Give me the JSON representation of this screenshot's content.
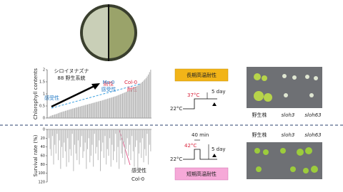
{
  "chart_data": [
    {
      "type": "bar",
      "y_label": "Chlorophyll contents",
      "color": "#a8a8a8",
      "ylim": [
        0,
        2
      ],
      "yticks": [
        0,
        0.5,
        1,
        1.5,
        2
      ],
      "inverted": false,
      "values": [
        0.05,
        0.08,
        0.1,
        0.12,
        0.13,
        0.15,
        0.16,
        0.18,
        0.2,
        0.22,
        0.24,
        0.25,
        0.27,
        0.28,
        0.3,
        0.31,
        0.33,
        0.34,
        0.36,
        0.37,
        0.39,
        0.4,
        0.41,
        0.43,
        0.44,
        0.46,
        0.47,
        0.48,
        0.5,
        0.51,
        0.52,
        0.54,
        0.55,
        0.56,
        0.58,
        0.59,
        0.6,
        0.62,
        0.63,
        0.64,
        0.66,
        0.67,
        0.68,
        0.7,
        0.71,
        0.72,
        0.74,
        0.75,
        0.77,
        0.78,
        0.8,
        0.81,
        0.83,
        0.84,
        0.86,
        0.87,
        0.89,
        0.9,
        0.92,
        0.94,
        0.96,
        0.98,
        1.0,
        1.02,
        1.04,
        1.06,
        1.08,
        1.1,
        1.12,
        1.14,
        1.17,
        1.2,
        1.23,
        1.26,
        1.29,
        1.32,
        1.35,
        1.38,
        1.42,
        1.46,
        1.5,
        1.55,
        1.6,
        1.65,
        1.72,
        1.8,
        1.9,
        2.0
      ]
    },
    {
      "type": "bar",
      "y_label": "Survival rate (%)",
      "color": "#b8b8b8",
      "ylim": [
        0,
        120
      ],
      "yticks": [
        0,
        20,
        40,
        60,
        80,
        100,
        120
      ],
      "inverted": true,
      "values": [
        20,
        45,
        60,
        15,
        80,
        35,
        55,
        10,
        70,
        25,
        90,
        40,
        65,
        30,
        50,
        85,
        20,
        75,
        45,
        60,
        10,
        95,
        35,
        55,
        70,
        25,
        80,
        40,
        15,
        65,
        50,
        30,
        90,
        45,
        20,
        75,
        60,
        35,
        85,
        10,
        55,
        40,
        70,
        25,
        95,
        50,
        30,
        65,
        15,
        80,
        45,
        60,
        20,
        85,
        35,
        70,
        50,
        10,
        75,
        40,
        90,
        25,
        55,
        65,
        30,
        80,
        45,
        20,
        60,
        35,
        70,
        15,
        50,
        85,
        40,
        25,
        95,
        55,
        30,
        65,
        20,
        75,
        45,
        60,
        10,
        80,
        35,
        50
      ]
    }
  ],
  "figure": {
    "species": "シロイヌナズナ",
    "lines": "88 野生系統",
    "tolerant": "耐性",
    "sensitive": "感受性",
    "ms0": "Ms-0",
    "ms0_note": "感受性",
    "col0": "Col-0",
    "col0_note": "耐性",
    "bottom_note": "感受性",
    "bottom_col0": "Col-0",
    "long_term": {
      "title": "長期高温耐性",
      "base": "22°C",
      "heat": "37°C",
      "period": "5 day"
    },
    "short_term": {
      "title": "短期高温耐性",
      "base": "22°C",
      "heat": "42°C",
      "duration": "40 min",
      "period": "5 day"
    },
    "photo_top_labels": [
      "野生株",
      "sloh3",
      "sloh63"
    ],
    "photo_bottom_labels": [
      "野生株",
      "sloh3",
      "sloh63"
    ]
  }
}
